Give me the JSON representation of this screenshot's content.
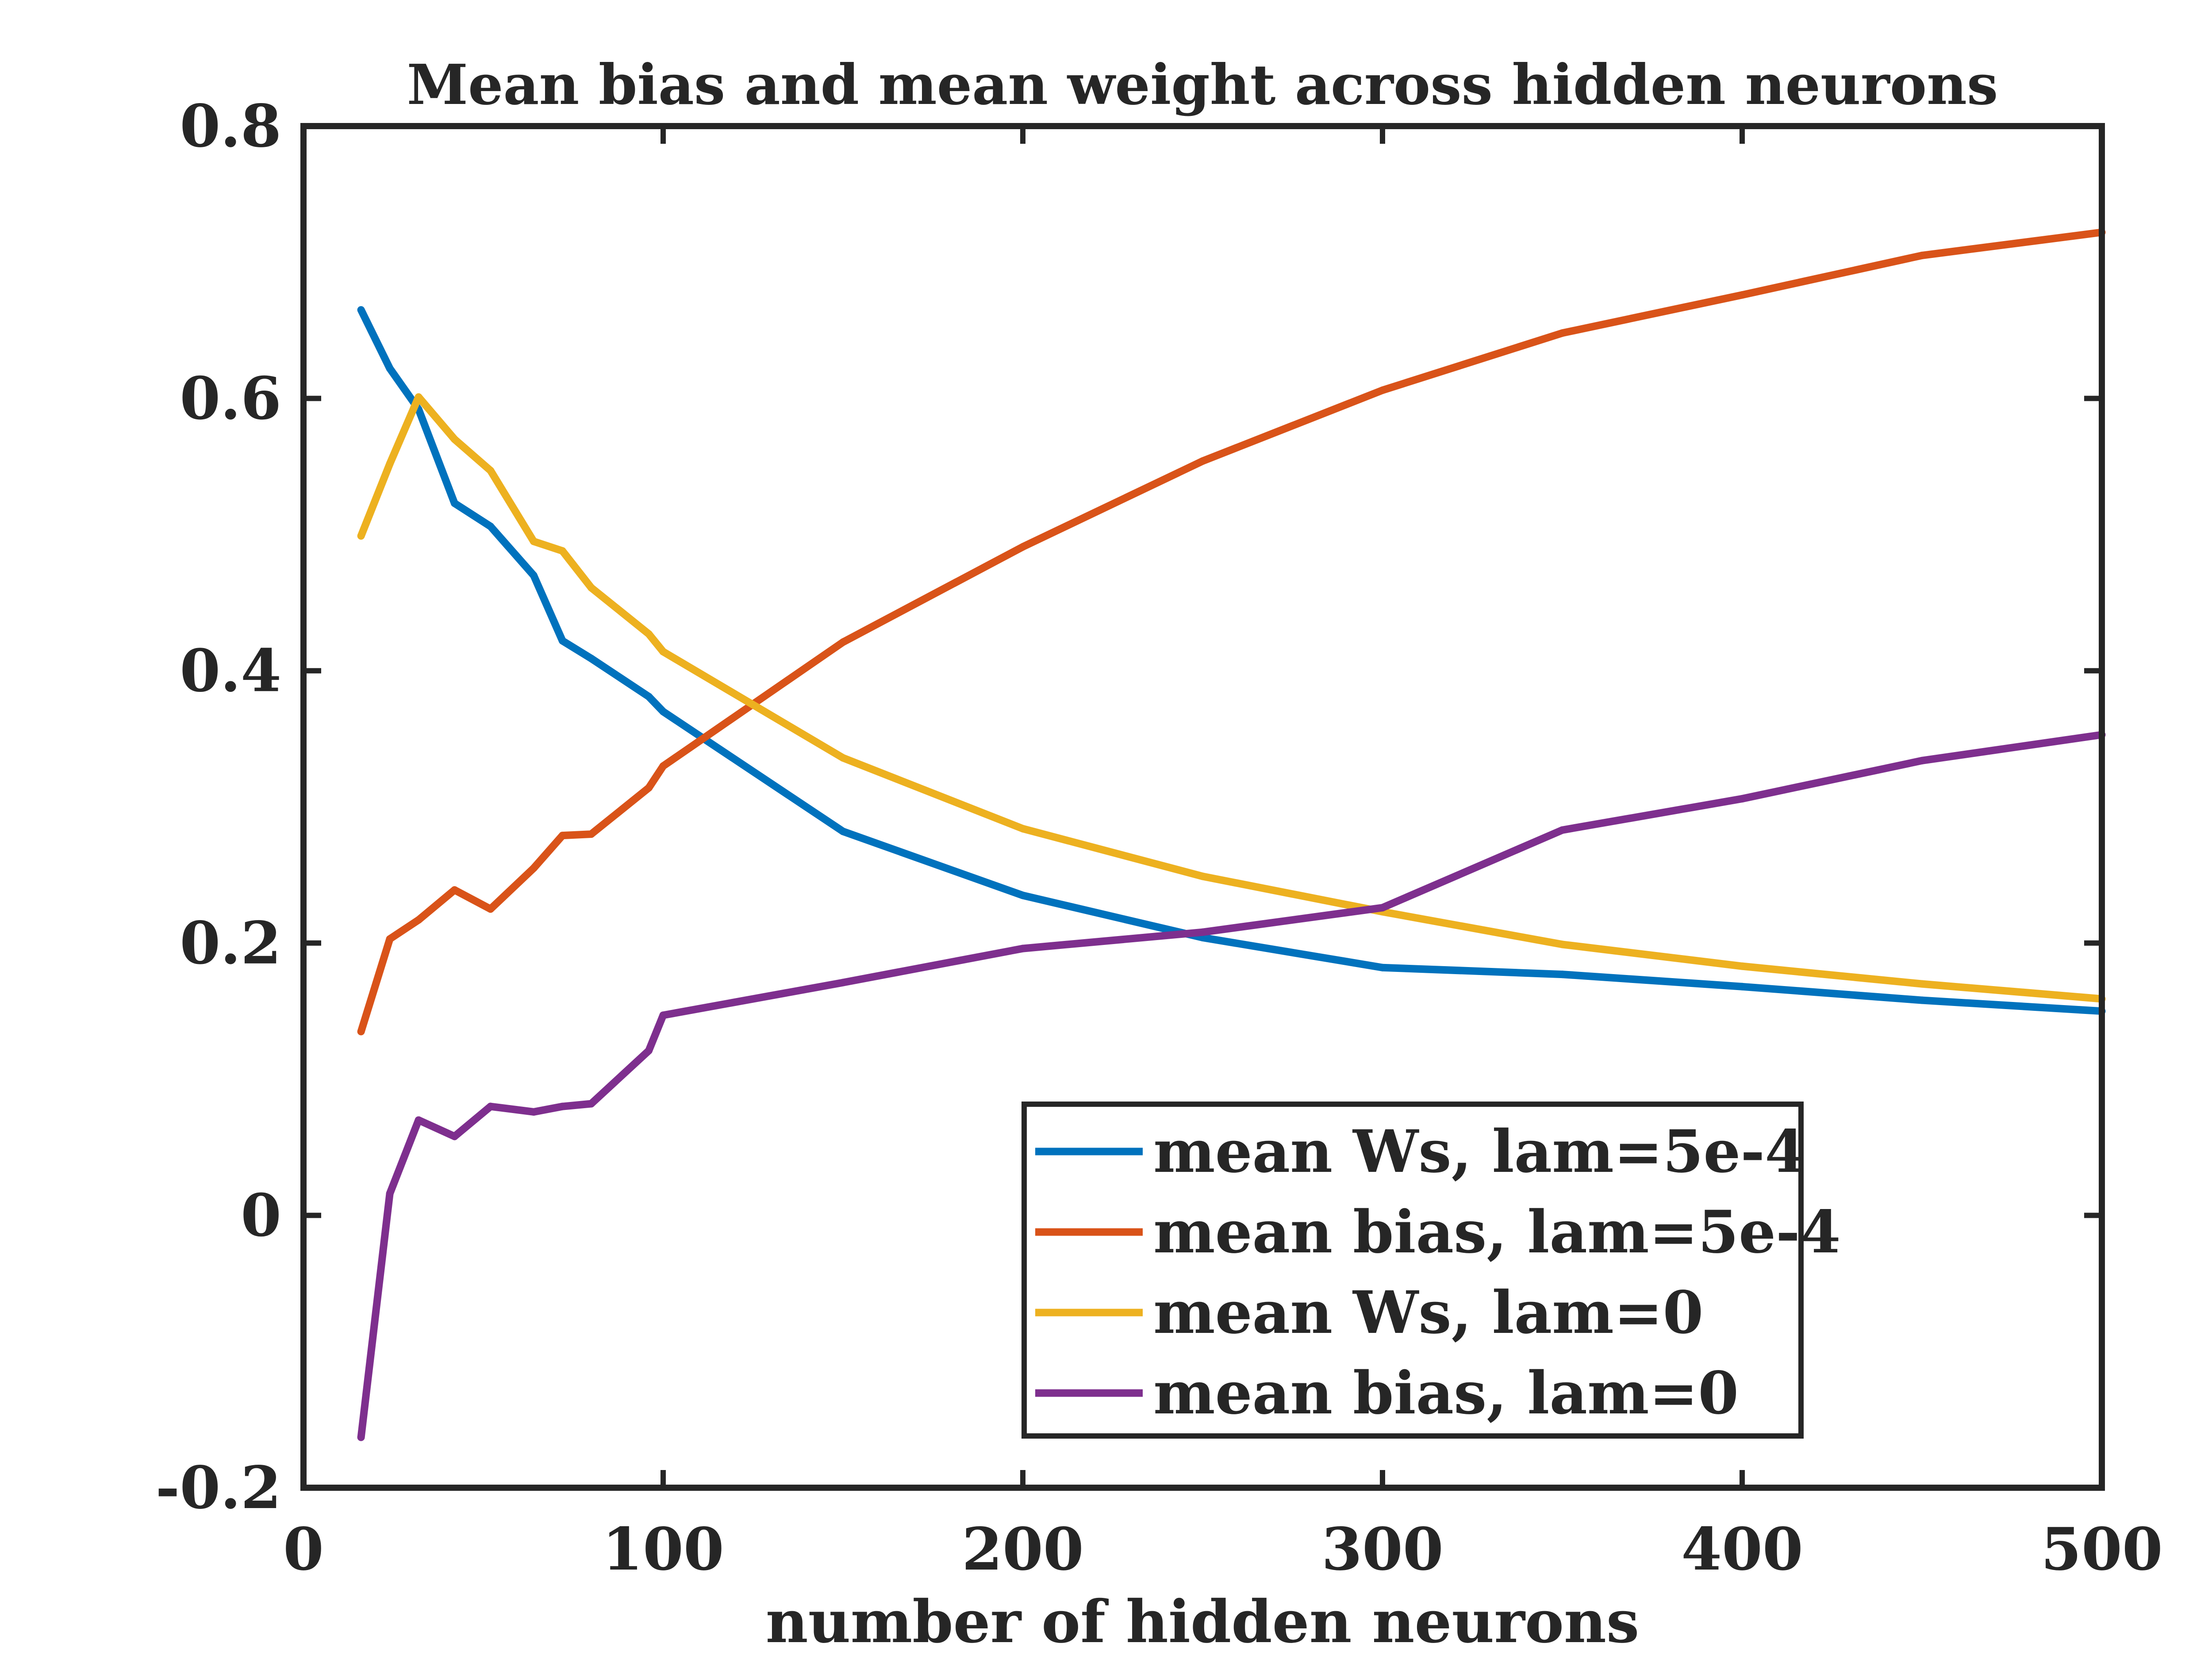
{
  "chart_data": {
    "type": "line",
    "title": "Mean bias and mean weight across hidden neurons",
    "xlabel": "number of hidden neurons",
    "ylabel": "",
    "xlim": [
      0,
      500
    ],
    "ylim": [
      -0.2,
      0.8
    ],
    "xticks": [
      0,
      100,
      200,
      300,
      400,
      500
    ],
    "xtick_labels": [
      "0",
      "100",
      "200",
      "300",
      "400",
      "500"
    ],
    "yticks": [
      -0.2,
      0,
      0.2,
      0.4,
      0.6,
      0.8
    ],
    "ytick_labels": [
      "-0.2",
      "0",
      "0.2",
      "0.4",
      "0.6",
      "0.8"
    ],
    "grid": false,
    "legend_position": "bottom-right",
    "x": [
      16,
      24,
      32,
      42,
      52,
      64,
      72,
      80,
      96,
      100,
      150,
      200,
      250,
      300,
      350,
      400,
      450,
      500
    ],
    "series": [
      {
        "name": "mean Ws, lam=5e-4",
        "color": "#0072BD",
        "values": [
          0.665,
          0.622,
          0.592,
          0.523,
          0.506,
          0.47,
          0.422,
          0.409,
          0.381,
          0.37,
          0.282,
          0.235,
          0.204,
          0.182,
          0.177,
          0.168,
          0.158,
          0.15
        ]
      },
      {
        "name": "mean bias, lam=5e-4",
        "color": "#D95319",
        "values": [
          0.135,
          0.203,
          0.217,
          0.239,
          0.225,
          0.255,
          0.279,
          0.28,
          0.314,
          0.33,
          0.421,
          0.491,
          0.554,
          0.606,
          0.648,
          0.676,
          0.705,
          0.722
        ]
      },
      {
        "name": "mean Ws, lam=0",
        "color": "#EDB120",
        "values": [
          0.499,
          0.552,
          0.601,
          0.57,
          0.547,
          0.495,
          0.488,
          0.461,
          0.427,
          0.414,
          0.336,
          0.284,
          0.249,
          0.223,
          0.199,
          0.183,
          0.17,
          0.159
        ]
      },
      {
        "name": "mean bias, lam=0",
        "color": "#7E2F8E",
        "values": [
          -0.163,
          0.016,
          0.07,
          0.058,
          0.08,
          0.076,
          0.08,
          0.082,
          0.121,
          0.147,
          0.171,
          0.196,
          0.208,
          0.226,
          0.283,
          0.306,
          0.334,
          0.353
        ]
      }
    ]
  }
}
